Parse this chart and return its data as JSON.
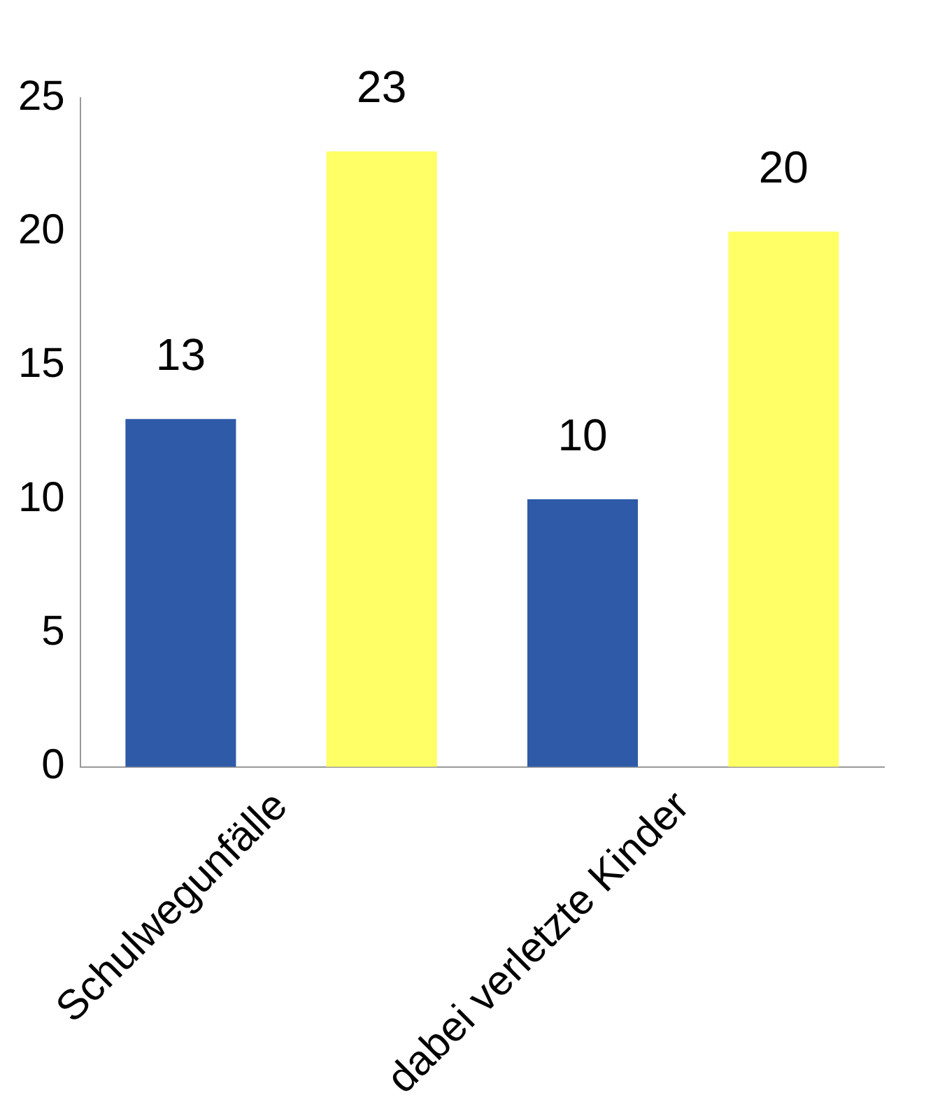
{
  "chart_data": {
    "type": "bar",
    "categories": [
      "Schulwegunfälle",
      "dabei verletzte Kinder"
    ],
    "series": [
      {
        "color": "#2e5aa8",
        "values": [
          13,
          10
        ]
      },
      {
        "color": "#ffff66",
        "values": [
          23,
          20
        ]
      }
    ],
    "ylim": [
      0,
      25
    ],
    "yticks": [
      0,
      5,
      10,
      15,
      20,
      25
    ],
    "grid": false,
    "legend": false,
    "data_labels": true
  }
}
